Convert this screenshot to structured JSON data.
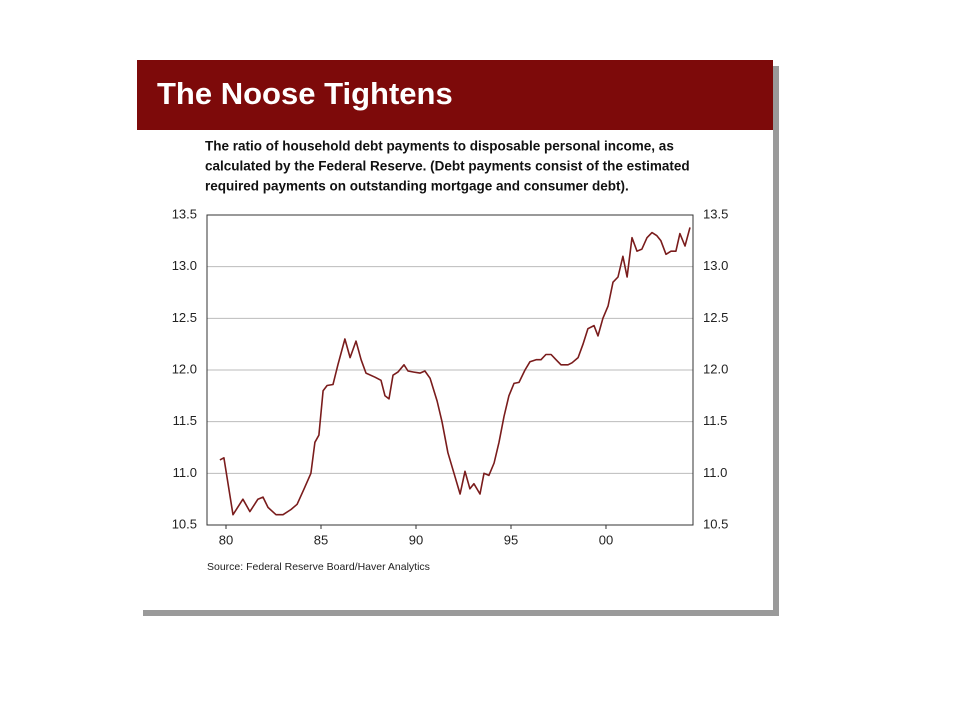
{
  "chart_data": {
    "type": "line",
    "title": "The Noose Tightens",
    "subtitle": [
      "The ratio of household debt payments to disposable personal income, as",
      "calculated by the Federal Reserve. (Debt payments consist of the estimated",
      "required payments on outstanding mortgage and consumer debt)."
    ],
    "source": "Source: Federal Reserve Board/Haver Analytics",
    "x": [
      1979.68,
      1979.89,
      1980.37,
      1980.89,
      1981.26,
      1981.68,
      1981.95,
      1982.21,
      1982.63,
      1983.0,
      1983.42,
      1983.74,
      1984.11,
      1984.47,
      1984.68,
      1984.89,
      1985.11,
      1985.32,
      1985.63,
      1985.89,
      1986.26,
      1986.53,
      1986.84,
      1987.11,
      1987.37,
      1987.84,
      1988.16,
      1988.37,
      1988.58,
      1988.79,
      1989.05,
      1989.37,
      1989.58,
      1989.89,
      1990.21,
      1990.47,
      1990.74,
      1991.11,
      1991.37,
      1991.68,
      1992.0,
      1992.32,
      1992.58,
      1992.84,
      1993.05,
      1993.37,
      1993.58,
      1993.84,
      1994.11,
      1994.37,
      1994.63,
      1994.89,
      1995.16,
      1995.42,
      1995.74,
      1996.0,
      1996.32,
      1996.58,
      1996.84,
      1997.11,
      1997.37,
      1997.63,
      1998.0,
      1998.21,
      1998.53,
      1998.79,
      1999.05,
      1999.37,
      1999.58,
      1999.84,
      2000.11,
      2000.37,
      2000.63,
      2000.89,
      2001.11,
      2001.37,
      2001.63,
      2001.89,
      2002.16,
      2002.42,
      2002.68,
      2002.89,
      2003.16,
      2003.42,
      2003.68,
      2003.89,
      2004.16,
      2004.42
    ],
    "series": [
      {
        "color": "#7a1c1c",
        "values": [
          11.13,
          11.15,
          10.6,
          10.75,
          10.63,
          10.75,
          10.77,
          10.67,
          10.6,
          10.6,
          10.65,
          10.7,
          10.85,
          11.0,
          11.3,
          11.37,
          11.8,
          11.85,
          11.86,
          12.05,
          12.3,
          12.12,
          12.28,
          12.1,
          11.97,
          11.93,
          11.9,
          11.75,
          11.72,
          11.95,
          11.98,
          12.05,
          11.99,
          11.98,
          11.97,
          11.99,
          11.92,
          11.7,
          11.5,
          11.2,
          11.0,
          10.8,
          11.02,
          10.85,
          10.9,
          10.8,
          11.0,
          10.98,
          11.1,
          11.3,
          11.55,
          11.75,
          11.87,
          11.88,
          12.0,
          12.08,
          12.1,
          12.1,
          12.15,
          12.15,
          12.1,
          12.05,
          12.05,
          12.07,
          12.12,
          12.25,
          12.4,
          12.43,
          12.33,
          12.5,
          12.62,
          12.85,
          12.9,
          13.1,
          12.9,
          13.28,
          13.15,
          13.17,
          13.28,
          13.33,
          13.3,
          13.25,
          13.12,
          13.15,
          13.15,
          13.32,
          13.2,
          13.38
        ]
      }
    ],
    "xlim": [
      1979.0,
      2004.58
    ],
    "xticks": [
      {
        "value": 1980,
        "label": "80"
      },
      {
        "value": 1985,
        "label": "85"
      },
      {
        "value": 1990,
        "label": "90"
      },
      {
        "value": 1995,
        "label": "95"
      },
      {
        "value": 2000,
        "label": "00"
      }
    ],
    "ylim": [
      10.5,
      13.5
    ],
    "yticks": [
      10.5,
      {
        "value": 11,
        "label": "11.0"
      },
      11.5,
      {
        "value": 12,
        "label": "12.0"
      },
      12.5,
      {
        "value": 13,
        "label": "13.0"
      },
      13.5
    ],
    "grid": true
  }
}
